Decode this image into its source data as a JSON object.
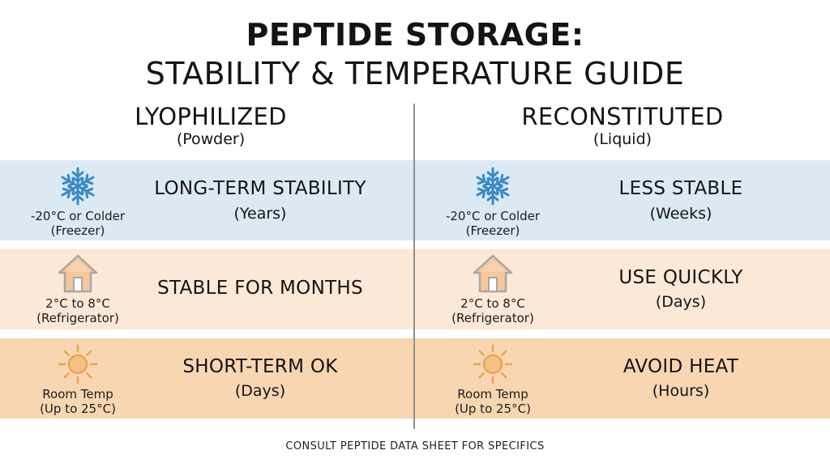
{
  "title": {
    "line1": "PEPTIDE STORAGE:",
    "line2": "STABILITY & TEMPERATURE GUIDE"
  },
  "columns": {
    "left": {
      "heading": "LYOPHILIZED",
      "subheading": "(Powder)"
    },
    "right": {
      "heading": "RECONSTITUTED",
      "subheading": "(Liquid)"
    }
  },
  "rows": {
    "freezer": {
      "icon": "snowflake-icon",
      "band_color": "#dbe9f3",
      "temp_line1": "-20°C or Colder",
      "temp_line2": "(Freezer)",
      "left_status": "LONG-TERM STABILITY",
      "left_detail": "(Years)",
      "right_status": "LESS STABLE",
      "right_detail": "(Weeks)"
    },
    "fridge": {
      "icon": "house-icon",
      "band_color": "#fce8d6",
      "temp_line1": "2°C to 8°C",
      "temp_line2": "(Refrigerator)",
      "left_status": "STABLE FOR MONTHS",
      "left_detail": "",
      "right_status": "USE QUICKLY",
      "right_detail": "(Days)"
    },
    "room": {
      "icon": "sun-icon",
      "band_color": "#f8d6b1",
      "temp_line1": "Room Temp",
      "temp_line2": "(Up to 25°C)",
      "left_status": "SHORT-TERM OK",
      "left_detail": "(Days)",
      "right_status": "AVOID HEAT",
      "right_detail": "(Hours)"
    }
  },
  "footer": "CONSULT PEPTIDE DATA SHEET FOR SPECIFICS"
}
